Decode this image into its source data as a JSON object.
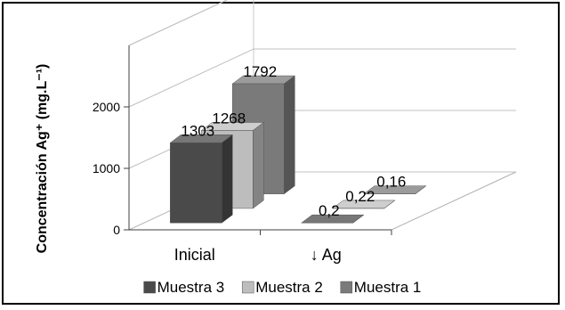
{
  "chart_data": {
    "type": "bar",
    "subtype": "3d-clustered-column",
    "categories": [
      "Inicial",
      "↓ Ag"
    ],
    "series": [
      {
        "name": "Muestra 3",
        "values": [
          1303,
          0.2
        ],
        "labels": [
          "1303",
          "0,2"
        ],
        "color": "#4a4a4a"
      },
      {
        "name": "Muestra 2",
        "values": [
          1268,
          0.22
        ],
        "labels": [
          "1268",
          "0,22"
        ],
        "color": "#bdbdbd"
      },
      {
        "name": "Muestra 1",
        "values": [
          1792,
          0.16
        ],
        "labels": [
          "1792",
          "0,16"
        ],
        "color": "#7a7a7a"
      }
    ],
    "ylabel": "Concentración Ag⁺ (mg.L⁻¹)",
    "yticks": [
      "0",
      "1000",
      "2000"
    ],
    "ylim": [
      0,
      3000
    ],
    "grid": true,
    "legend_position": "bottom"
  }
}
